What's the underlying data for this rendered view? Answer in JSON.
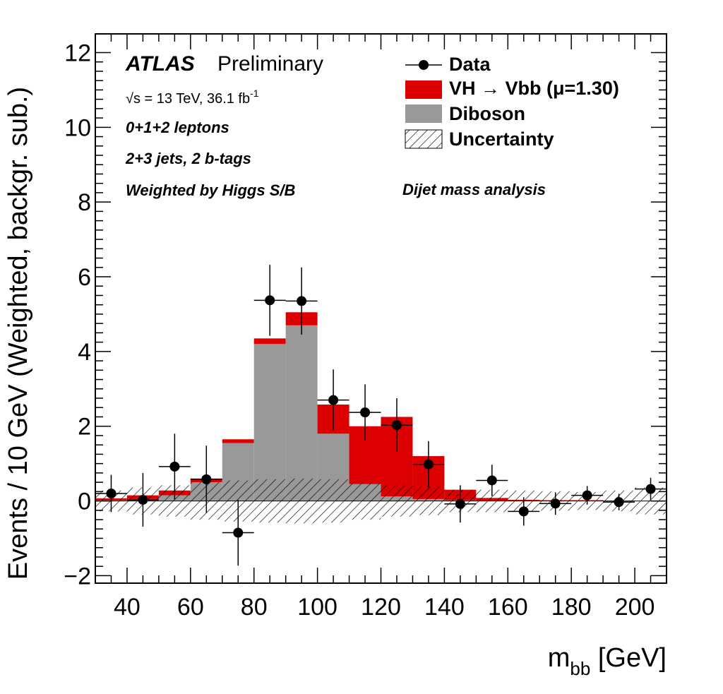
{
  "colors": {
    "signal": "#dd0000",
    "diboson": "#999999",
    "data": "#000000",
    "frame": "#000000"
  },
  "annotations": {
    "atlas": "ATLAS",
    "preliminary": "Preliminary",
    "energy": "√s = 13 TeV, 36.1 fb",
    "energy_sup": "-1",
    "leptons": "0+1+2 leptons",
    "jets": "2+3 jets, 2 b-tags",
    "weighted": "Weighted by Higgs S/B",
    "analysis": "Dijet mass analysis"
  },
  "legend": {
    "data": "Data",
    "signal": "VH → Vbb (μ=1.30)",
    "diboson": "Diboson",
    "uncertainty": "Uncertainty"
  },
  "chart_data": {
    "type": "bar",
    "xlabel": "m",
    "xlabel_sub": "bb",
    "xlabel_unit": " [GeV]",
    "ylabel": "Events / 10 GeV (Weighted, backgr. sub.)",
    "xlim": [
      30,
      210
    ],
    "ylim": [
      -2.2,
      12.5
    ],
    "xticks": [
      40,
      60,
      80,
      100,
      120,
      140,
      160,
      180,
      200
    ],
    "yticks": [
      -2,
      0,
      2,
      4,
      6,
      8,
      10,
      12
    ],
    "ytick_labels": [
      "−2",
      "0",
      "2",
      "4",
      "6",
      "8",
      "10",
      "12"
    ],
    "bin_edges": [
      30,
      40,
      50,
      60,
      70,
      80,
      90,
      100,
      110,
      120,
      130,
      140,
      150,
      160,
      170,
      180,
      190,
      200,
      210
    ],
    "series": [
      {
        "name": "Diboson",
        "values": [
          0.02,
          0.05,
          0.15,
          0.5,
          1.55,
          4.2,
          4.7,
          1.8,
          0.45,
          0.12,
          0.05,
          0.02,
          0.01,
          0.0,
          0.0,
          0.0,
          0.0,
          0.0
        ]
      },
      {
        "name": "VH → Vbb (μ=1.30)",
        "values": [
          0.05,
          0.1,
          0.13,
          0.1,
          0.1,
          0.15,
          0.35,
          0.78,
          1.55,
          2.13,
          1.15,
          0.28,
          0.07,
          0.03,
          0.02,
          0.02,
          0.01,
          0.0
        ]
      }
    ],
    "uncertainty": [
      0.28,
      0.36,
      0.42,
      0.5,
      0.55,
      0.58,
      0.6,
      0.58,
      0.5,
      0.42,
      0.38,
      0.3,
      0.3,
      0.28,
      0.26,
      0.24,
      0.28,
      0.36
    ],
    "data_points": {
      "x": [
        35,
        45,
        55,
        65,
        75,
        85,
        95,
        105,
        115,
        125,
        135,
        145,
        155,
        165,
        175,
        185,
        195,
        205
      ],
      "y": [
        0.2,
        0.03,
        0.92,
        0.58,
        -0.85,
        5.37,
        5.35,
        2.7,
        2.37,
        2.03,
        0.98,
        -0.08,
        0.55,
        -0.28,
        -0.07,
        0.15,
        -0.03,
        0.32
      ],
      "err": [
        0.5,
        0.72,
        0.88,
        0.9,
        0.88,
        0.95,
        0.9,
        0.82,
        0.75,
        0.72,
        0.62,
        0.5,
        0.42,
        0.38,
        0.3,
        0.25,
        0.22,
        0.3
      ]
    }
  }
}
